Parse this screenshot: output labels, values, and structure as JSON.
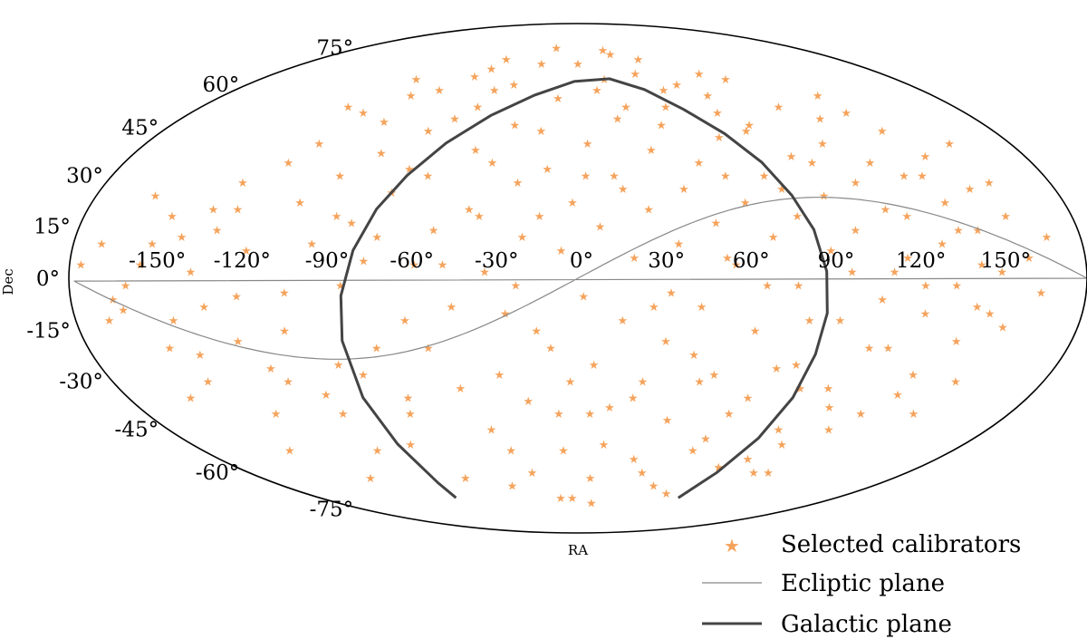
{
  "chart_data": {
    "type": "scatter",
    "projection": "mollweide",
    "xlabel": "RA",
    "ylabel": "Dec",
    "xlim": [
      -180,
      180
    ],
    "ylim": [
      -90,
      90
    ],
    "ra_tick_labels": [
      "-150°",
      "-120°",
      "-90°",
      "-60°",
      "-30°",
      "0°",
      "30°",
      "60°",
      "90°",
      "120°",
      "150°"
    ],
    "ra_tick_values": [
      -150,
      -120,
      -90,
      -60,
      -30,
      0,
      30,
      60,
      90,
      120,
      150
    ],
    "dec_tick_labels": [
      "-75°",
      "-60°",
      "-45°",
      "-30°",
      "-15°",
      "0°",
      "15°",
      "30°",
      "45°",
      "60°",
      "75°"
    ],
    "dec_tick_values": [
      -75,
      -60,
      -45,
      -30,
      -15,
      0,
      15,
      30,
      45,
      60,
      75
    ],
    "grid": false,
    "legend_position": "bottom-right",
    "legend": [
      "Selected calibrators",
      "Ecliptic plane",
      "Galactic plane"
    ],
    "colors": {
      "calibrators": "#f5a35c",
      "ecliptic": "#888888",
      "galactic": "#444444",
      "frame": "#000000"
    },
    "series": [
      {
        "name": "Selected calibrators",
        "marker": "star",
        "points": [
          [
            -165,
            -6
          ],
          [
            -162,
            -9
          ],
          [
            -160,
            -2
          ],
          [
            -155,
            4
          ],
          [
            -152,
            10
          ],
          [
            -148,
            18
          ],
          [
            -145,
            -12
          ],
          [
            -140,
            -22
          ],
          [
            -137,
            2
          ],
          [
            -133,
            -8
          ],
          [
            -130,
            14
          ],
          [
            -128,
            28
          ],
          [
            -125,
            20
          ],
          [
            -121,
            -5
          ],
          [
            -118,
            8
          ],
          [
            -115,
            34
          ],
          [
            -112,
            -30
          ],
          [
            -108,
            40
          ],
          [
            -106,
            -15
          ],
          [
            -103,
            22
          ],
          [
            -100,
            50
          ],
          [
            -98,
            -40
          ],
          [
            -95,
            10
          ],
          [
            -92,
            30
          ],
          [
            -90,
            -25
          ],
          [
            -87,
            47
          ],
          [
            -85,
            56
          ],
          [
            -82,
            16
          ],
          [
            -80,
            37
          ],
          [
            -78,
            -50
          ],
          [
            -76,
            5
          ],
          [
            -73,
            58
          ],
          [
            -70,
            25
          ],
          [
            -68,
            -35
          ],
          [
            -65,
            44
          ],
          [
            -62,
            -12
          ],
          [
            -60,
            63
          ],
          [
            -58,
            30
          ],
          [
            -55,
            -20
          ],
          [
            -52,
            14
          ],
          [
            -50,
            70
          ],
          [
            -48,
            52
          ],
          [
            -45,
            -8
          ],
          [
            -42,
            38
          ],
          [
            -40,
            20
          ],
          [
            -38,
            -45
          ],
          [
            -35,
            60
          ],
          [
            -33,
            2
          ],
          [
            -30,
            -28
          ],
          [
            -28,
            46
          ],
          [
            -25,
            -60
          ],
          [
            -23,
            28
          ],
          [
            -20,
            12
          ],
          [
            -18,
            75
          ],
          [
            -15,
            -15
          ],
          [
            -12,
            32
          ],
          [
            -10,
            55
          ],
          [
            -8,
            -40
          ],
          [
            -6,
            8
          ],
          [
            -4,
            -70
          ],
          [
            -2,
            22
          ],
          [
            0,
            68
          ],
          [
            2,
            -5
          ],
          [
            4,
            40
          ],
          [
            6,
            -25
          ],
          [
            8,
            15
          ],
          [
            10,
            58
          ],
          [
            12,
            -50
          ],
          [
            14,
            30
          ],
          [
            16,
            -12
          ],
          [
            18,
            48
          ],
          [
            20,
            6
          ],
          [
            22,
            -35
          ],
          [
            24,
            72
          ],
          [
            26,
            20
          ],
          [
            28,
            -55
          ],
          [
            30,
            38
          ],
          [
            32,
            -18
          ],
          [
            34,
            64
          ],
          [
            36,
            10
          ],
          [
            38,
            -42
          ],
          [
            40,
            26
          ],
          [
            42,
            52
          ],
          [
            44,
            -8
          ],
          [
            46,
            -65
          ],
          [
            48,
            34
          ],
          [
            50,
            16
          ],
          [
            52,
            -28
          ],
          [
            54,
            60
          ],
          [
            56,
            4
          ],
          [
            58,
            -48
          ],
          [
            60,
            42
          ],
          [
            62,
            22
          ],
          [
            64,
            -15
          ],
          [
            66,
            56
          ],
          [
            68,
            -35
          ],
          [
            70,
            12
          ],
          [
            72,
            30
          ],
          [
            74,
            -58
          ],
          [
            76,
            46
          ],
          [
            78,
            -2
          ],
          [
            80,
            18
          ],
          [
            82,
            -25
          ],
          [
            84,
            62
          ],
          [
            86,
            36
          ],
          [
            88,
            -45
          ],
          [
            90,
            8
          ],
          [
            92,
            24
          ],
          [
            94,
            -12
          ],
          [
            96,
            52
          ],
          [
            98,
            -32
          ],
          [
            100,
            14
          ],
          [
            102,
            40
          ],
          [
            104,
            -60
          ],
          [
            106,
            28
          ],
          [
            108,
            -6
          ],
          [
            110,
            48
          ],
          [
            112,
            2
          ],
          [
            114,
            -20
          ],
          [
            116,
            34
          ],
          [
            118,
            -40
          ],
          [
            120,
            18
          ],
          [
            122,
            56
          ],
          [
            124,
            -10
          ],
          [
            126,
            30
          ],
          [
            128,
            -28
          ],
          [
            130,
            10
          ],
          [
            132,
            44
          ],
          [
            134,
            -2
          ],
          [
            136,
            22
          ],
          [
            138,
            -18
          ],
          [
            140,
            36
          ],
          [
            142,
            -8
          ],
          [
            144,
            14
          ],
          [
            146,
            -30
          ],
          [
            148,
            26
          ],
          [
            150,
            2
          ],
          [
            153,
            -14
          ],
          [
            156,
            18
          ],
          [
            160,
            6
          ],
          [
            164,
            -4
          ],
          [
            168,
            12
          ],
          [
            -170,
            10
          ],
          [
            -168,
            -12
          ],
          [
            -158,
            24
          ],
          [
            -143,
            -30
          ],
          [
            -126,
            -40
          ],
          [
            -110,
            52
          ],
          [
            -96,
            -52
          ],
          [
            -84,
            -2
          ],
          [
            -72,
            12
          ],
          [
            -64,
            -62
          ],
          [
            -56,
            48
          ],
          [
            -46,
            -32
          ],
          [
            -36,
            18
          ],
          [
            -26,
            -10
          ],
          [
            -16,
            44
          ],
          [
            -7,
            -52
          ],
          [
            3,
            30
          ],
          [
            13,
            -38
          ],
          [
            23,
            52
          ],
          [
            33,
            -4
          ],
          [
            43,
            -22
          ],
          [
            53,
            6
          ],
          [
            63,
            -40
          ],
          [
            73,
            44
          ],
          [
            83,
            -12
          ],
          [
            93,
            34
          ],
          [
            103,
            -38
          ],
          [
            113,
            20
          ],
          [
            123,
            -2
          ],
          [
            133,
            30
          ],
          [
            143,
            4
          ],
          [
            -142,
            12
          ],
          [
            -124,
            -18
          ],
          [
            -104,
            -4
          ],
          [
            -88,
            18
          ],
          [
            -74,
            -20
          ],
          [
            -58,
            4
          ],
          [
            -44,
            58
          ],
          [
            -32,
            -52
          ],
          [
            -22,
            -2
          ],
          [
            -14,
            18
          ],
          [
            -3,
            -30
          ],
          [
            7,
            -62
          ],
          [
            17,
            26
          ],
          [
            27,
            -8
          ],
          [
            37,
            46
          ],
          [
            47,
            -30
          ],
          [
            57,
            30
          ],
          [
            67,
            -2
          ],
          [
            77,
            26
          ],
          [
            87,
            -32
          ],
          [
            97,
            2
          ],
          [
            107,
            -20
          ],
          [
            117,
            6
          ],
          [
            127,
            -34
          ],
          [
            137,
            14
          ],
          [
            147,
            -10
          ],
          [
            157,
            28
          ],
          [
            -176,
            4
          ],
          [
            -150,
            -20
          ],
          [
            -134,
            20
          ],
          [
            -116,
            -26
          ],
          [
            -100,
            -34
          ],
          [
            -82,
            -28
          ],
          [
            -66,
            32
          ],
          [
            -48,
            4
          ],
          [
            -34,
            34
          ],
          [
            -20,
            -36
          ],
          [
            -10,
            -20
          ],
          [
            5,
            -40
          ],
          [
            15,
            62
          ],
          [
            25,
            -30
          ],
          [
            35,
            -60
          ],
          [
            45,
            58
          ],
          [
            55,
            -52
          ],
          [
            65,
            50
          ],
          [
            75,
            -26
          ],
          [
            85,
            -55
          ],
          [
            95,
            -50
          ],
          [
            110,
            -45
          ],
          [
            125,
            50
          ],
          [
            140,
            -40
          ],
          [
            155,
            40
          ],
          [
            -155,
            -35
          ],
          [
            -138,
            -52
          ],
          [
            -118,
            -62
          ],
          [
            -92,
            62
          ],
          [
            -70,
            -40
          ],
          [
            -54,
            66
          ],
          [
            -40,
            -65
          ],
          [
            -24,
            68
          ],
          [
            -12,
            -70
          ],
          [
            10,
            -72
          ],
          [
            20,
            74
          ],
          [
            42,
            70
          ],
          [
            58,
            -68
          ],
          [
            72,
            64
          ],
          [
            96,
            -60
          ]
        ]
      },
      {
        "name": "Ecliptic plane",
        "line": "thin"
      },
      {
        "name": "Galactic plane",
        "line": "thick"
      }
    ]
  }
}
